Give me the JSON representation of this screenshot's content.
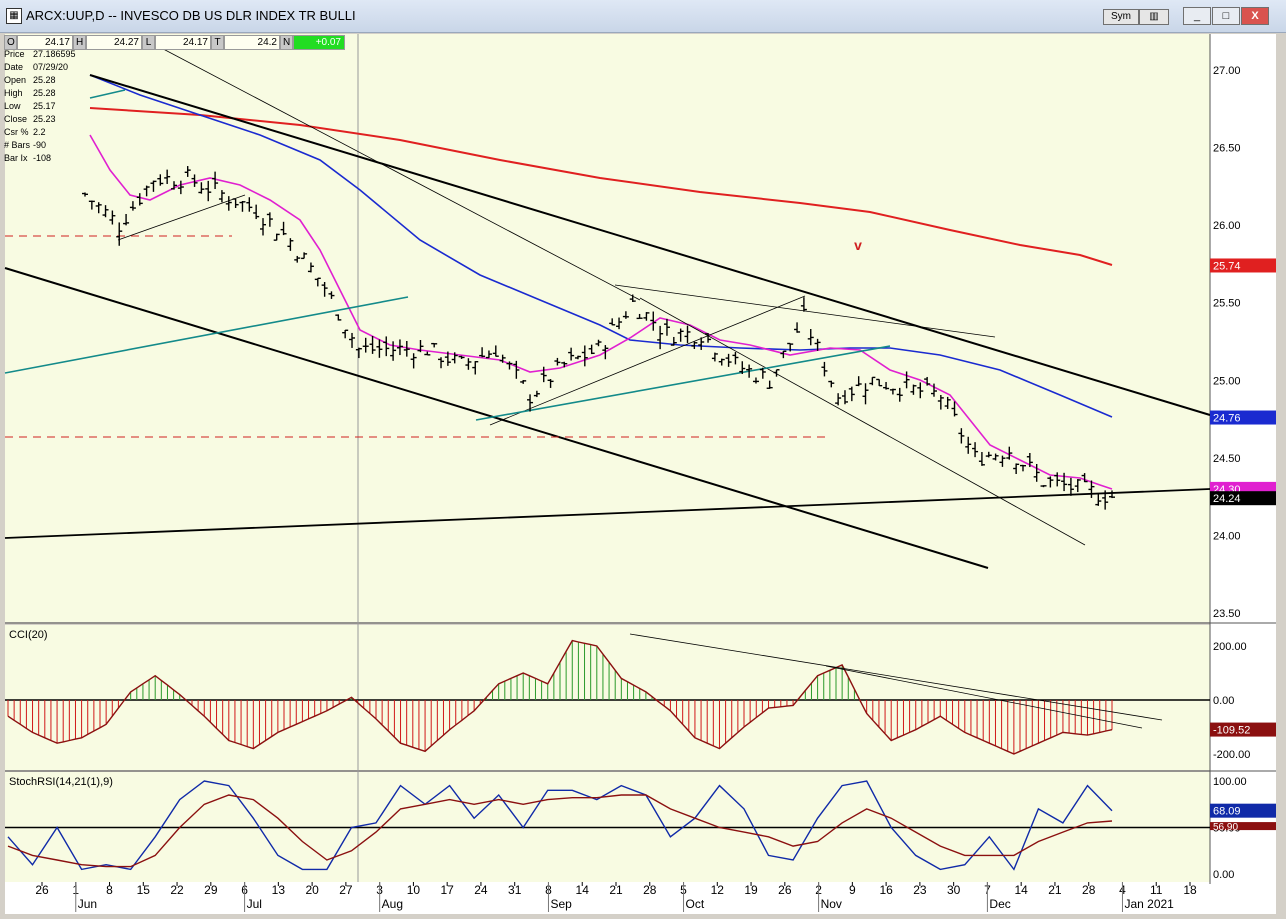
{
  "window": {
    "title": "ARCX:UUP,D -- INVESCO DB US DLR INDEX TR BULLI",
    "sym_button": "Sym",
    "buttons": [
      "_",
      "□",
      "X"
    ]
  },
  "ohlc_bar": {
    "o_label": "O",
    "o": "24.17",
    "h_label": "H",
    "h": "24.27",
    "l_label": "L",
    "l": "24.17",
    "t_label": "T",
    "t": "24.2",
    "n_label": "N",
    "change": "+0.07"
  },
  "info": [
    {
      "k": "Price",
      "v": "27.186595"
    },
    {
      "k": "Date",
      "v": "07/29/20"
    },
    {
      "k": "Open",
      "v": "25.28"
    },
    {
      "k": "High",
      "v": "25.28"
    },
    {
      "k": "Low",
      "v": "25.17"
    },
    {
      "k": "Close",
      "v": "25.23"
    },
    {
      "k": "Csr %",
      "v": "2.2"
    },
    {
      "k": "# Bars",
      "v": "-90"
    },
    {
      "k": "Bar Ix",
      "v": "-108"
    }
  ],
  "colors": {
    "panel_bg": "#f8fbe2",
    "ma_short": "#e020d0",
    "ma_mid": "#1a2ad0",
    "ma_long": "#e02020",
    "teal": "#138a8a",
    "cci_pos": "#2a9a2a",
    "cci_neg": "#d01818",
    "cci_line": "#8b1010",
    "stoch_fast": "#102aa8",
    "stoch_slow": "#8b1010"
  },
  "chart_data": [
    {
      "type": "line",
      "panel": "price",
      "ylim": [
        23.5,
        27.0
      ],
      "y_ticks": [
        "27.00",
        "26.50",
        "26.00",
        "25.50",
        "25.00",
        "24.50",
        "24.00",
        "23.50"
      ],
      "annotation": "v",
      "price_labels": [
        {
          "text": "25.74",
          "value": 25.74,
          "color": "#e02020"
        },
        {
          "text": "24.76",
          "value": 24.76,
          "color": "#1a2ad0"
        },
        {
          "text": "24.30",
          "value": 24.3,
          "color": "#e020d0"
        },
        {
          "text": "24.24",
          "value": 24.24,
          "color": "#000000"
        }
      ],
      "ohlc_daily": [
        [
          25.3,
          25.2
        ],
        [
          25.2,
          25.15
        ],
        [
          25.17,
          25.1
        ],
        [
          25.1,
          25.0
        ],
        [
          25.0,
          24.9
        ],
        [
          24.92,
          24.95
        ],
        [
          24.95,
          25.2
        ],
        [
          25.2,
          25.3
        ],
        [
          25.3,
          25.2
        ],
        [
          25.22,
          25.35
        ],
        [
          25.35,
          25.28
        ],
        [
          25.3,
          25.4
        ],
        [
          25.4,
          25.3
        ],
        [
          25.32,
          25.28
        ],
        [
          25.28,
          25.35
        ],
        [
          25.35,
          25.4
        ],
        [
          25.4,
          25.28
        ]
      ],
      "series": [
        {
          "name": "",
          "note": "close",
          "x": [
            "Jun 2",
            "Jun 9",
            "Jun 16",
            "Jun 23",
            "Jun 30",
            "Jul 7",
            "Jul 14",
            "Jul 21",
            "Jul 28",
            "Aug 4",
            "Aug 11",
            "Aug 18",
            "Aug 25",
            "Sep 1",
            "Sep 8",
            "Sep 15",
            "Sep 22",
            "Sep 29",
            "Oct 6",
            "Oct 13",
            "Oct 20",
            "Oct 27",
            "Nov 3",
            "Nov 10",
            "Nov 17",
            "Nov 24",
            "Dec 1",
            "Dec 8",
            "Dec 15",
            "Dec 22",
            "Dec 29"
          ],
          "values": [
            26.2,
            26.0,
            26.3,
            26.3,
            26.2,
            26.1,
            25.9,
            25.6,
            25.2,
            25.2,
            25.2,
            25.1,
            25.2,
            24.9,
            25.1,
            25.2,
            25.5,
            25.3,
            25.3,
            25.1,
            25.0,
            25.4,
            24.9,
            25.0,
            24.95,
            24.9,
            24.5,
            24.55,
            24.35,
            24.3,
            24.25
          ]
        }
      ]
    },
    {
      "type": "bar",
      "panel": "cci",
      "title": "CCI(20)",
      "ylim": [
        -250,
        250
      ],
      "y_ticks": [
        "200.00",
        "0.00",
        "-200.00"
      ],
      "value_label": "-109.52",
      "values": [
        -60,
        -120,
        -160,
        -140,
        -90,
        30,
        90,
        20,
        -60,
        -150,
        -180,
        -120,
        -80,
        -40,
        10,
        -70,
        -160,
        -190,
        -110,
        -40,
        60,
        100,
        60,
        220,
        200,
        80,
        30,
        -40,
        -140,
        -180,
        -100,
        -30,
        -20,
        90,
        130,
        -50,
        -150,
        -110,
        -60,
        -120,
        -160,
        -200,
        -160,
        -120,
        -130,
        -110
      ]
    },
    {
      "type": "line",
      "panel": "stochrsi",
      "title": "StochRSI(14,21(1),9)",
      "ylim": [
        0,
        100
      ],
      "y_ticks": [
        "100.00",
        "50.00",
        "0.00"
      ],
      "value_labels": [
        "68.09",
        "56.90"
      ],
      "series": [
        {
          "name": "",
          "values": [
            40,
            10,
            50,
            5,
            10,
            5,
            40,
            80,
            100,
            95,
            60,
            20,
            5,
            5,
            50,
            55,
            95,
            75,
            95,
            60,
            85,
            50,
            90,
            90,
            80,
            95,
            85,
            40,
            60,
            95,
            70,
            20,
            15,
            60,
            95,
            100,
            50,
            20,
            5,
            10,
            40,
            5,
            70,
            55,
            95,
            68
          ]
        },
        {
          "name": "",
          "values": [
            30,
            20,
            15,
            10,
            8,
            8,
            20,
            50,
            75,
            85,
            80,
            60,
            35,
            15,
            25,
            45,
            70,
            75,
            80,
            75,
            80,
            75,
            80,
            82,
            82,
            85,
            85,
            70,
            60,
            50,
            45,
            40,
            30,
            35,
            55,
            70,
            60,
            45,
            30,
            20,
            20,
            20,
            35,
            45,
            55,
            57
          ]
        }
      ]
    }
  ],
  "x_axis": {
    "days": [
      "26",
      "1",
      "8",
      "15",
      "22",
      "29",
      "6",
      "13",
      "20",
      "27",
      "3",
      "10",
      "17",
      "24",
      "31",
      "8",
      "14",
      "21",
      "28",
      "5",
      "12",
      "19",
      "26",
      "2",
      "9",
      "16",
      "23",
      "30",
      "7",
      "14",
      "21",
      "28",
      "4",
      "11",
      "18"
    ],
    "months": [
      "Jun",
      "Jul",
      "Aug",
      "Sep",
      "Oct",
      "Nov",
      "Dec",
      "Jan 2021"
    ]
  }
}
